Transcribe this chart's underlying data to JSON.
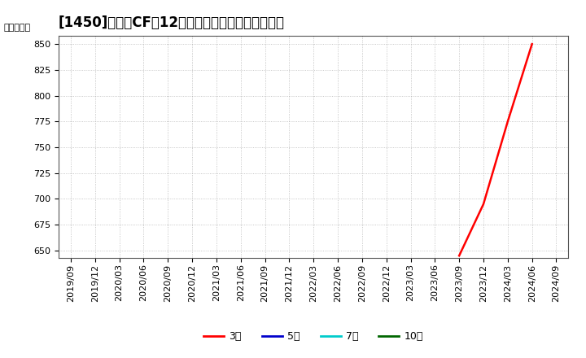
{
  "title_bracket": "[1450]",
  "title_text": "営業CFだ12か月移動合計の平均値の推移",
  "ylabel": "（百万円）",
  "ylim": [
    643,
    858
  ],
  "yticks": [
    650,
    675,
    700,
    725,
    750,
    775,
    800,
    825,
    850
  ],
  "background_color": "#ffffff",
  "plot_bg_color": "#ffffff",
  "grid_color": "#999999",
  "title_fontsize": 12,
  "axis_fontsize": 8,
  "tick_fontsize": 8,
  "x_labels": [
    "2019/09",
    "2019/12",
    "2020/03",
    "2020/06",
    "2020/09",
    "2020/12",
    "2021/03",
    "2021/06",
    "2021/09",
    "2021/12",
    "2022/03",
    "2022/06",
    "2022/09",
    "2022/12",
    "2023/03",
    "2023/06",
    "2023/09",
    "2023/12",
    "2024/03",
    "2024/06",
    "2024/09"
  ],
  "red_x": [
    16,
    17,
    18,
    19
  ],
  "red_y": [
    645,
    695,
    775,
    850
  ],
  "series_colors": [
    "#ff0000",
    "#0000cc",
    "#00cccc",
    "#006600"
  ],
  "series_labels": [
    "3年",
    "5年",
    "7年",
    "10年"
  ],
  "legend_fontsize": 9
}
